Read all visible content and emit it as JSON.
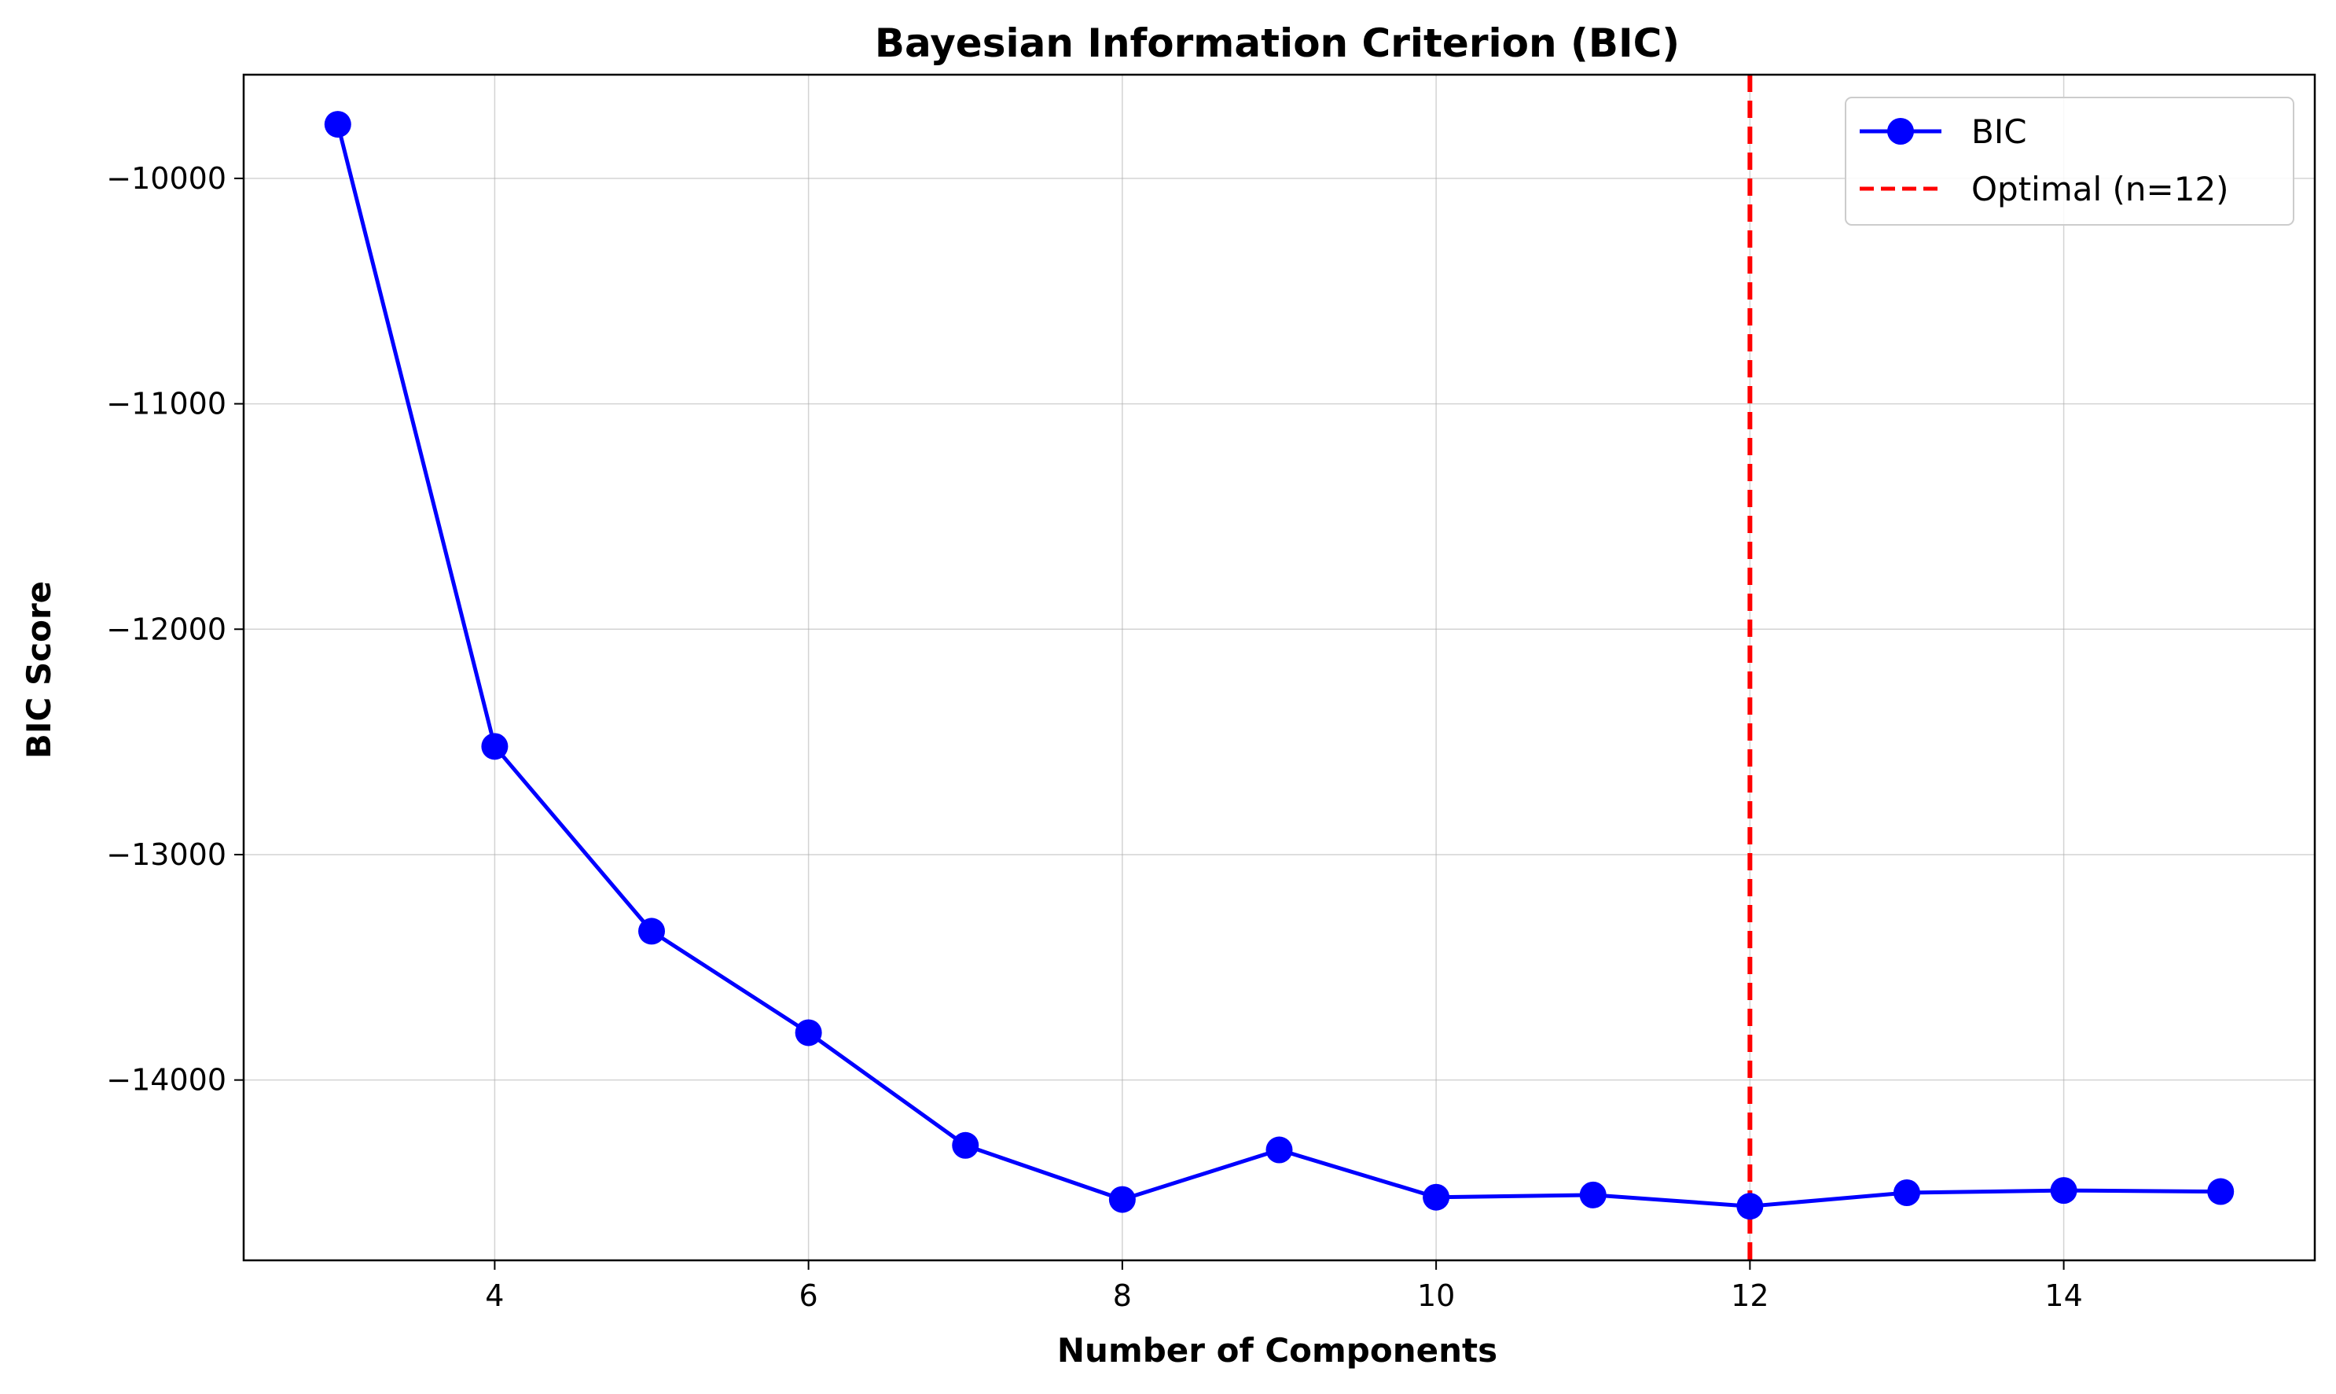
{
  "chart_data": {
    "type": "line",
    "title": "Bayesian Information Criterion (BIC)",
    "xlabel": "Number of Components",
    "ylabel": "BIC Score",
    "x": [
      3,
      4,
      5,
      6,
      7,
      8,
      9,
      10,
      11,
      12,
      13,
      14,
      15
    ],
    "series": [
      {
        "name": "BIC",
        "color": "#0000ff",
        "marker": "circle",
        "values": [
          -9760,
          -12520,
          -13340,
          -13790,
          -14290,
          -14530,
          -14310,
          -14520,
          -14510,
          -14560,
          -14500,
          -14490,
          -14495
        ]
      }
    ],
    "reference_lines": [
      {
        "type": "vertical",
        "x": 12,
        "label": "Optimal (n=12)",
        "color": "#ff0000",
        "style": "dashed"
      }
    ],
    "xlim": [
      2.4,
      15.6
    ],
    "ylim": [
      -14800,
      -9540
    ],
    "xticks": [
      4,
      6,
      8,
      10,
      12,
      14
    ],
    "xtick_labels": [
      "4",
      "6",
      "8",
      "10",
      "12",
      "14"
    ],
    "yticks": [
      -10000,
      -11000,
      -12000,
      -13000,
      -14000
    ],
    "ytick_labels": [
      "−10000",
      "−11000",
      "−12000",
      "−13000",
      "−14000"
    ],
    "grid": true,
    "legend_position": "top-right",
    "legend": [
      "BIC",
      "Optimal (n=12)"
    ]
  }
}
